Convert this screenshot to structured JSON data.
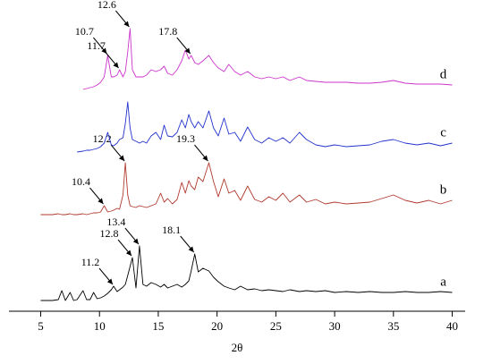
{
  "chart_data": {
    "type": "line",
    "xlabel": "2θ",
    "x": [
      5,
      6,
      6.5,
      6.8,
      7.1,
      7.5,
      7.8,
      8.1,
      8.6,
      8.9,
      9.2,
      9.5,
      9.8,
      10.1,
      10.4,
      10.7,
      11.0,
      11.2,
      11.5,
      11.7,
      12.0,
      12.2,
      12.4,
      12.6,
      12.8,
      13.1,
      13.4,
      13.7,
      14.0,
      14.4,
      14.8,
      15.2,
      15.5,
      15.8,
      16.2,
      16.6,
      17.0,
      17.3,
      17.6,
      17.8,
      18.1,
      18.4,
      18.8,
      19.3,
      19.7,
      20.1,
      20.6,
      21.0,
      21.5,
      22.0,
      22.6,
      23.2,
      23.8,
      24.4,
      25.0,
      25.6,
      26.2,
      27.0,
      27.6,
      28.4,
      29.2,
      30,
      31,
      32,
      33,
      34,
      35,
      36,
      37,
      38,
      39,
      40
    ],
    "series": [
      {
        "name": "a",
        "color": "#000000",
        "values": [
          12,
          12,
          13,
          23,
          12,
          21,
          12,
          13,
          23,
          13,
          13,
          21,
          14,
          15,
          17,
          20,
          24,
          28,
          22,
          24,
          27,
          30,
          40,
          50,
          60,
          26,
          73,
          30,
          28,
          32,
          30,
          27,
          30,
          26,
          28,
          30,
          27,
          30,
          34,
          45,
          64,
          44,
          48,
          45,
          38,
          33,
          28,
          26,
          24,
          28,
          24,
          25,
          23,
          24,
          23,
          22,
          24,
          22,
          23,
          22,
          23,
          21,
          22,
          21,
          22,
          21,
          21,
          22,
          21,
          21,
          22,
          21
        ],
        "annotations": [
          {
            "text": "11.2",
            "x": 11.2
          },
          {
            "text": "12.8",
            "x": 12.8
          },
          {
            "text": "13.4",
            "x": 13.4
          },
          {
            "text": "18.1",
            "x": 18.1
          }
        ]
      },
      {
        "name": "b",
        "color": "#b03a2e",
        "values": [
          108,
          108,
          109,
          108,
          108,
          109,
          108,
          108,
          109,
          108,
          109,
          110,
          110,
          111,
          118,
          111,
          112,
          113,
          115,
          114,
          130,
          166,
          130,
          118,
          117,
          116,
          118,
          117,
          116,
          118,
          120,
          132,
          122,
          126,
          120,
          125,
          144,
          132,
          146,
          140,
          136,
          150,
          145,
          166,
          145,
          128,
          148,
          132,
          135,
          124,
          140,
          125,
          122,
          128,
          124,
          132,
          122,
          130,
          122,
          125,
          120,
          122,
          120,
          121,
          122,
          126,
          130,
          124,
          121,
          124,
          120,
          124
        ],
        "annotations": [
          {
            "text": "10.4",
            "x": 10.4
          },
          {
            "text": "12.2",
            "x": 12.2
          },
          {
            "text": "19.3",
            "x": 19.3
          }
        ]
      },
      {
        "name": "c",
        "color": "#2233cc",
        "values": [
          null,
          null,
          null,
          null,
          null,
          null,
          null,
          178,
          179,
          180,
          180,
          181,
          182,
          184,
          188,
          200,
          186,
          185,
          188,
          192,
          194,
          210,
          234,
          205,
          192,
          190,
          188,
          190,
          188,
          196,
          200,
          192,
          208,
          196,
          195,
          200,
          214,
          205,
          220,
          212,
          205,
          212,
          205,
          224,
          205,
          196,
          216,
          198,
          200,
          190,
          206,
          192,
          188,
          194,
          190,
          194,
          188,
          200,
          192,
          186,
          184,
          186,
          184,
          185,
          186,
          190,
          192,
          188,
          186,
          188,
          185,
          188
        ]
      },
      {
        "name": "d",
        "color": "#cc33cc",
        "values": [
          null,
          null,
          null,
          null,
          null,
          null,
          null,
          null,
          248,
          249,
          250,
          251,
          253,
          256,
          262,
          286,
          262,
          262,
          264,
          270,
          262,
          268,
          290,
          316,
          270,
          262,
          262,
          262,
          264,
          270,
          268,
          270,
          274,
          266,
          264,
          270,
          280,
          292,
          282,
          286,
          278,
          276,
          280,
          286,
          278,
          272,
          268,
          276,
          268,
          264,
          268,
          262,
          260,
          262,
          260,
          262,
          258,
          262,
          258,
          257,
          256,
          256,
          256,
          255,
          255,
          256,
          258,
          255,
          254,
          254,
          254,
          253
        ],
        "annotations": [
          {
            "text": "10.7",
            "x": 10.7
          },
          {
            "text": "11.7",
            "x": 11.7
          },
          {
            "text": "12.6",
            "x": 12.6
          },
          {
            "text": "17.8",
            "x": 17.8
          }
        ]
      }
    ],
    "xlim": [
      2.3,
      41.1
    ],
    "xticks": [
      5,
      10,
      15,
      20,
      25,
      30,
      35,
      40
    ],
    "ylim": [
      0,
      340
    ]
  }
}
